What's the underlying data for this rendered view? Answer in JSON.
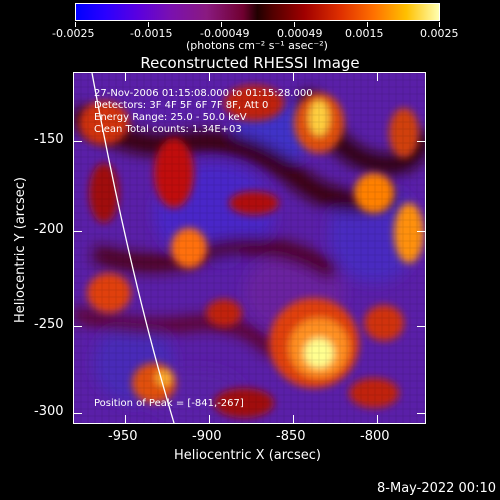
{
  "colorbar": {
    "ticks": [
      "-0.0025",
      "-0.0015",
      "-0.00049",
      "0.00049",
      "0.0015",
      "0.0025"
    ],
    "unit": "(photons cm⁻² s⁻¹ asec⁻²)"
  },
  "title": "Reconstructed RHESSI Image",
  "annotations": {
    "time": "27-Nov-2006 01:15:08.000 to 01:15:28.000",
    "detectors": "Detectors: 3F 4F 5F 6F 7F 8F, Att 0",
    "energy": "Energy Range: 25.0 - 50.0 keV",
    "clean": "Clean     Total counts: 1.34E+03",
    "peak": "Position of Peak = [-841,-267]"
  },
  "axes": {
    "xlabel": "Heliocentric X (arcsec)",
    "ylabel": "Heliocentric Y (arcsec)",
    "xticks": [
      "-950",
      "-900",
      "-850",
      "-800"
    ],
    "yticks": [
      "-150",
      "-200",
      "-250",
      "-300"
    ]
  },
  "footer_date": "8-May-2022 00:10"
}
